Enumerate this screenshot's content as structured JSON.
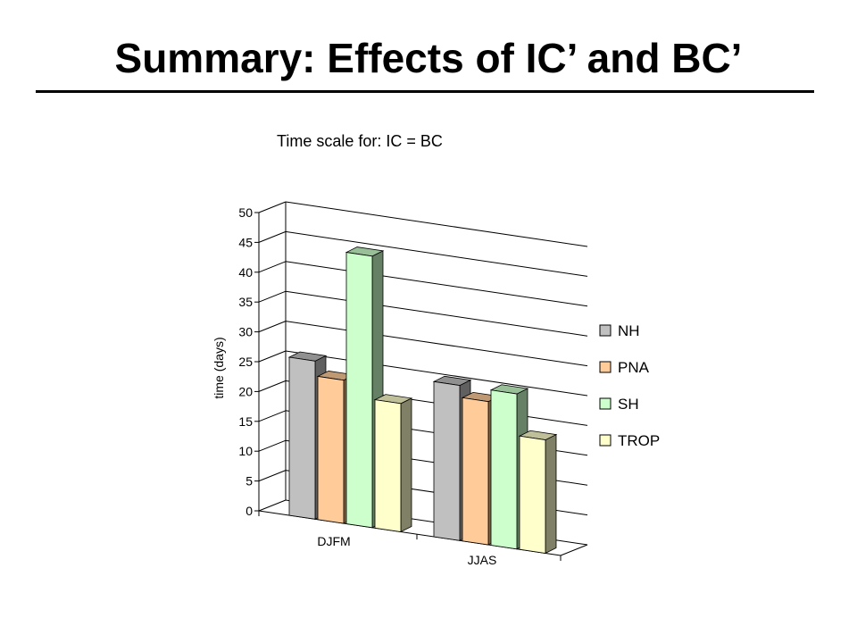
{
  "slide": {
    "title": "Summary: Effects of IC’ and BC’",
    "subtitle": "Time scale for: IC = BC"
  },
  "chart_data": {
    "type": "bar",
    "style": "3d-clustered-column",
    "title": "",
    "xlabel": "",
    "ylabel": "time (days)",
    "ylim": [
      0,
      50
    ],
    "yticks": [
      0,
      5,
      10,
      15,
      20,
      25,
      30,
      35,
      40,
      45,
      50
    ],
    "grid": true,
    "legend_position": "right",
    "categories": [
      "DJFM",
      "JJAS"
    ],
    "series": [
      {
        "name": "NH",
        "values": [
          26.5,
          26.0
        ],
        "color": "#c0c0c0"
      },
      {
        "name": "PNA",
        "values": [
          24.0,
          24.0
        ],
        "color": "#ffcc99"
      },
      {
        "name": "SH",
        "values": [
          45.5,
          26.0
        ],
        "color": "#ccffcc"
      },
      {
        "name": "TROP",
        "values": [
          21.5,
          19.0
        ],
        "color": "#ffffcc"
      }
    ]
  }
}
